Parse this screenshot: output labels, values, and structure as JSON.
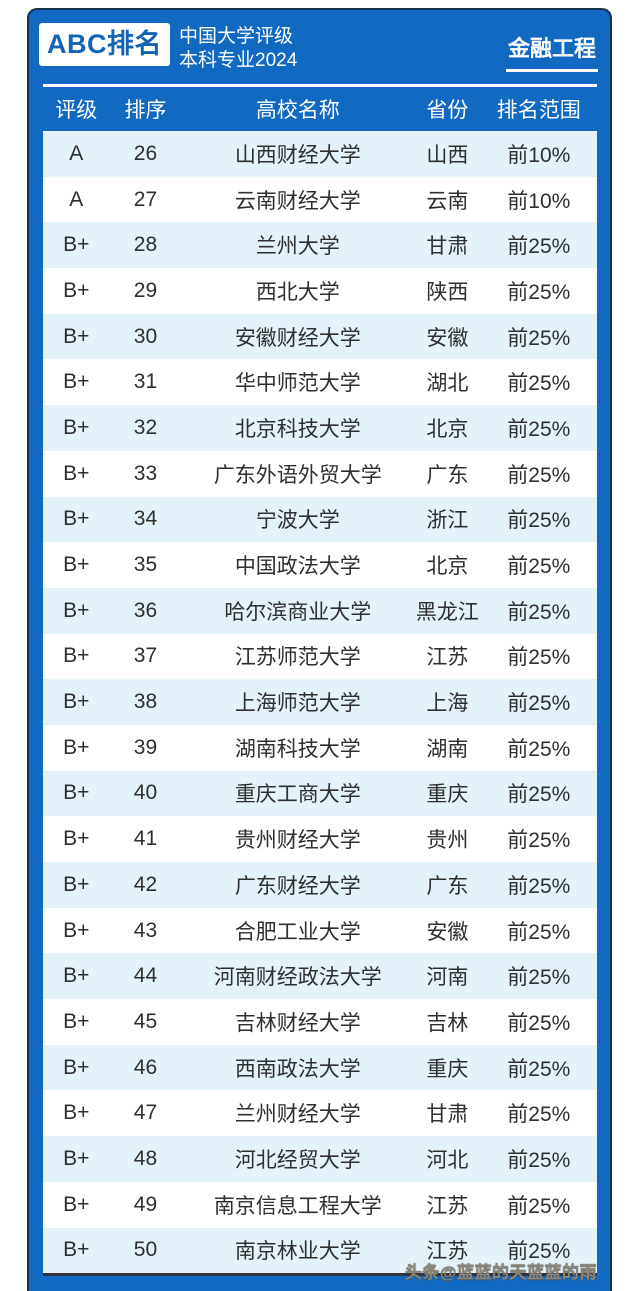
{
  "header": {
    "brand": "ABC排名",
    "title_line1": "中国大学评级",
    "title_line2": "本科专业2024",
    "subject": "金融工程"
  },
  "watermark": "头条@蓝蓝的天蓝蓝的雨",
  "colors": {
    "frame_blue": "#1169c2",
    "frame_edge": "#16314f",
    "brand_blue": "#1464b4",
    "stripe_blue": "#e3f3f9",
    "row_text": "#2f2f2f",
    "bottom_line": "#31323c",
    "watermark_gray": "#8b867c"
  },
  "chart_data": {
    "type": "table",
    "title": "ABC排名 中国大学评级 本科专业2024 — 金融工程",
    "columns": [
      "评级",
      "排序",
      "高校名称",
      "省份",
      "排名范围"
    ],
    "rows": [
      {
        "rating": "A",
        "rank": "26",
        "university": "山西财经大学",
        "province": "山西",
        "range": "前10%"
      },
      {
        "rating": "A",
        "rank": "27",
        "university": "云南财经大学",
        "province": "云南",
        "range": "前10%"
      },
      {
        "rating": "B+",
        "rank": "28",
        "university": "兰州大学",
        "province": "甘肃",
        "range": "前25%"
      },
      {
        "rating": "B+",
        "rank": "29",
        "university": "西北大学",
        "province": "陕西",
        "range": "前25%"
      },
      {
        "rating": "B+",
        "rank": "30",
        "university": "安徽财经大学",
        "province": "安徽",
        "range": "前25%"
      },
      {
        "rating": "B+",
        "rank": "31",
        "university": "华中师范大学",
        "province": "湖北",
        "range": "前25%"
      },
      {
        "rating": "B+",
        "rank": "32",
        "university": "北京科技大学",
        "province": "北京",
        "range": "前25%"
      },
      {
        "rating": "B+",
        "rank": "33",
        "university": "广东外语外贸大学",
        "province": "广东",
        "range": "前25%"
      },
      {
        "rating": "B+",
        "rank": "34",
        "university": "宁波大学",
        "province": "浙江",
        "range": "前25%"
      },
      {
        "rating": "B+",
        "rank": "35",
        "university": "中国政法大学",
        "province": "北京",
        "range": "前25%"
      },
      {
        "rating": "B+",
        "rank": "36",
        "university": "哈尔滨商业大学",
        "province": "黑龙江",
        "range": "前25%"
      },
      {
        "rating": "B+",
        "rank": "37",
        "university": "江苏师范大学",
        "province": "江苏",
        "range": "前25%"
      },
      {
        "rating": "B+",
        "rank": "38",
        "university": "上海师范大学",
        "province": "上海",
        "range": "前25%"
      },
      {
        "rating": "B+",
        "rank": "39",
        "university": "湖南科技大学",
        "province": "湖南",
        "range": "前25%"
      },
      {
        "rating": "B+",
        "rank": "40",
        "university": "重庆工商大学",
        "province": "重庆",
        "range": "前25%"
      },
      {
        "rating": "B+",
        "rank": "41",
        "university": "贵州财经大学",
        "province": "贵州",
        "range": "前25%"
      },
      {
        "rating": "B+",
        "rank": "42",
        "university": "广东财经大学",
        "province": "广东",
        "range": "前25%"
      },
      {
        "rating": "B+",
        "rank": "43",
        "university": "合肥工业大学",
        "province": "安徽",
        "range": "前25%"
      },
      {
        "rating": "B+",
        "rank": "44",
        "university": "河南财经政法大学",
        "province": "河南",
        "range": "前25%"
      },
      {
        "rating": "B+",
        "rank": "45",
        "university": "吉林财经大学",
        "province": "吉林",
        "range": "前25%"
      },
      {
        "rating": "B+",
        "rank": "46",
        "university": "西南政法大学",
        "province": "重庆",
        "range": "前25%"
      },
      {
        "rating": "B+",
        "rank": "47",
        "university": "兰州财经大学",
        "province": "甘肃",
        "range": "前25%"
      },
      {
        "rating": "B+",
        "rank": "48",
        "university": "河北经贸大学",
        "province": "河北",
        "range": "前25%"
      },
      {
        "rating": "B+",
        "rank": "49",
        "university": "南京信息工程大学",
        "province": "江苏",
        "range": "前25%"
      },
      {
        "rating": "B+",
        "rank": "50",
        "university": "南京林业大学",
        "province": "江苏",
        "range": "前25%"
      }
    ]
  }
}
